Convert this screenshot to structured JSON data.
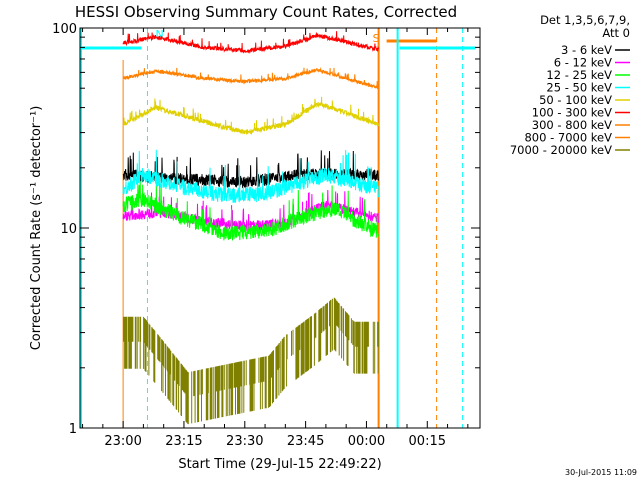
{
  "chart_data": {
    "type": "line",
    "title": "HESSI Observing Summary Count Rates, Corrected",
    "ylabel": "Corrected Count Rate (s⁻¹ detector⁻¹)",
    "xlabel": "Start Time (29-Jul-15 22:49:22)",
    "x_axis": {
      "type": "time",
      "range": [
        "22:49:22",
        "00:28:00"
      ],
      "ticks": [
        "23:00",
        "23:15",
        "23:30",
        "23:45",
        "00:00",
        "00:15"
      ]
    },
    "y_axis": {
      "type": "log",
      "range": [
        1,
        100
      ],
      "ticks": [
        1,
        10,
        100
      ],
      "tick_labels": [
        "1",
        "10",
        "100"
      ]
    },
    "legend_header": [
      "Det 1,3,5,6,7,9,",
      "Att 0"
    ],
    "legend_placement": "right",
    "series": [
      {
        "name": "3 - 6 keV",
        "color": "#000000",
        "points": [
          [
            "23:00",
            18.5
          ],
          [
            "23:15",
            17.5
          ],
          [
            "23:30",
            17
          ],
          [
            "23:45",
            18.5
          ],
          [
            "00:03",
            18.5
          ]
        ]
      },
      {
        "name": "6 - 12 keV",
        "color": "#ff00ff",
        "points": [
          [
            "23:00",
            11.5
          ],
          [
            "23:10",
            12
          ],
          [
            "23:20",
            10.8
          ],
          [
            "23:30",
            10.2
          ],
          [
            "23:40",
            10.5
          ],
          [
            "23:50",
            13
          ],
          [
            "00:03",
            11.2
          ]
        ]
      },
      {
        "name": "12 - 25 keV",
        "color": "#00ff00",
        "points": [
          [
            "23:00",
            13
          ],
          [
            "23:05",
            13.8
          ],
          [
            "23:15",
            11.2
          ],
          [
            "23:25",
            9.4
          ],
          [
            "23:35",
            9.6
          ],
          [
            "23:45",
            11.5
          ],
          [
            "23:52",
            12.5
          ],
          [
            "00:03",
            9.5
          ]
        ]
      },
      {
        "name": "25 - 50 keV",
        "color": "#00ffff",
        "points": [
          [
            "23:00",
            15.5
          ],
          [
            "23:05",
            18.5
          ],
          [
            "23:15",
            16
          ],
          [
            "23:25",
            14.5
          ],
          [
            "23:35",
            14.8
          ],
          [
            "23:50",
            18.5
          ],
          [
            "00:03",
            15.5
          ]
        ]
      },
      {
        "name": "50 - 100 keV",
        "color": "#e0d000",
        "points": [
          [
            "23:00",
            33
          ],
          [
            "23:08",
            40
          ],
          [
            "23:20",
            34
          ],
          [
            "23:30",
            30
          ],
          [
            "23:40",
            33
          ],
          [
            "23:48",
            42
          ],
          [
            "00:03",
            33
          ]
        ]
      },
      {
        "name": "100 - 300 keV",
        "color": "#ff0000",
        "points": [
          [
            "23:00",
            84
          ],
          [
            "23:08",
            90
          ],
          [
            "23:20",
            80
          ],
          [
            "23:30",
            77
          ],
          [
            "23:40",
            81
          ],
          [
            "23:48",
            92
          ],
          [
            "00:03",
            78
          ]
        ]
      },
      {
        "name": "300 - 800 keV",
        "color": "#ff8000",
        "points": [
          [
            "23:00",
            56
          ],
          [
            "23:08",
            61
          ],
          [
            "23:20",
            56
          ],
          [
            "23:30",
            54
          ],
          [
            "23:40",
            56
          ],
          [
            "23:48",
            62
          ],
          [
            "00:03",
            50
          ]
        ]
      },
      {
        "name": "800 - 7000 keV",
        "color": "#ff8000",
        "points": []
      },
      {
        "name": "7000 - 20000 keV",
        "color": "#808000",
        "points": [
          [
            "23:00",
            3.6
          ],
          [
            "23:05",
            3.6
          ],
          [
            "23:10",
            2.7
          ],
          [
            "23:16",
            1.9
          ],
          [
            "23:36",
            2.3
          ],
          [
            "23:40",
            2.9
          ],
          [
            "23:47",
            3.7
          ],
          [
            "23:52",
            4.5
          ],
          [
            "23:57",
            3.4
          ],
          [
            "00:03",
            3.4
          ]
        ]
      }
    ],
    "annotations": [
      {
        "text": "N",
        "color": "#00ffff",
        "x": "23:06"
      },
      {
        "text": "S",
        "color": "#ff8000",
        "x": "00:03"
      }
    ]
  },
  "footer": {
    "date_stamp": "30-Jul-2015 11:09"
  }
}
